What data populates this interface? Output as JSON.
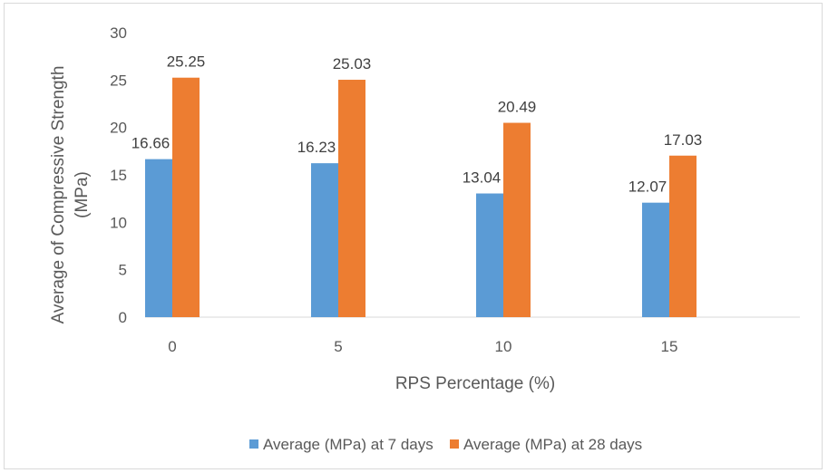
{
  "chart_data": {
    "type": "bar",
    "title": "",
    "xlabel": "RPS Percentage (%)",
    "ylabel_lines": [
      "Average of Compressive Strength",
      "(MPa)"
    ],
    "categories": [
      "0",
      "5",
      "10",
      "15"
    ],
    "ylim": [
      0,
      30
    ],
    "yticks": [
      0,
      5,
      10,
      15,
      20,
      25,
      30
    ],
    "grid": false,
    "legend_position": "bottom",
    "series": [
      {
        "name": "Average (MPa) at 7 days",
        "color": "#5B9BD5",
        "values": [
          16.66,
          16.23,
          13.04,
          12.07
        ],
        "labels": [
          "16.66",
          "16.23",
          "13.04",
          "12.07"
        ]
      },
      {
        "name": "Average (MPa) at 28 days",
        "color": "#ED7D31",
        "values": [
          25.25,
          25.03,
          20.49,
          17.03
        ],
        "labels": [
          "25.25",
          "25.03",
          "20.49",
          "17.03"
        ]
      }
    ]
  }
}
